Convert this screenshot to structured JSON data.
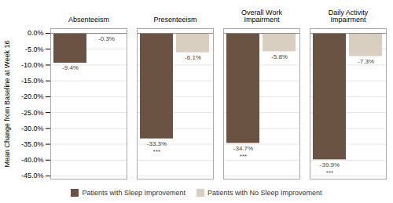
{
  "chart_data": {
    "type": "bar",
    "categories": [
      "Absenteeism",
      "Presenteeism",
      "Overall Work\nImpairment",
      "Daily Activity\nImpairment"
    ],
    "series": [
      {
        "name": "Patients with Sleep Improvement",
        "color": "#6b5344",
        "values": [
          -9.4,
          -33.3,
          -34.7,
          -39.9
        ],
        "value_labels": [
          "-9.4%",
          "-33.3%",
          "-34.7%",
          "-39.9%"
        ]
      },
      {
        "name": "Patients with No Sleep Improvement",
        "color": "#d9cfc0",
        "values": [
          -0.3,
          -6.1,
          -5.8,
          -7.3
        ],
        "value_labels": [
          "-0.3%",
          "-6.1%",
          "-5.8%",
          "-7.3%"
        ]
      }
    ],
    "y_label": "Mean Change from Baseline at Week 16",
    "ylim": [
      -46,
      1.5
    ],
    "yticks": [
      {
        "value": 0.0,
        "label": "0.0%"
      },
      {
        "value": -5.0,
        "label": "-5.0%"
      },
      {
        "value": -10.0,
        "label": "-10.0%"
      },
      {
        "value": -15.0,
        "label": "-15.0%"
      },
      {
        "value": -20.0,
        "label": "-20.0%"
      },
      {
        "value": -25.0,
        "label": "-25.0%"
      },
      {
        "value": -30.0,
        "label": "-30.0%"
      },
      {
        "value": -35.0,
        "label": "-35.0%"
      },
      {
        "value": -40.0,
        "label": "-40.0%"
      },
      {
        "value": -45.0,
        "label": "-45.0%"
      }
    ],
    "annotations": [
      {
        "text": "***",
        "category": "Presenteeism",
        "series": "Patients with Sleep Improvement"
      },
      {
        "text": "***",
        "category": "Overall Work\nImpairment",
        "series": "Patients with Sleep Improvement"
      },
      {
        "text": "***",
        "category": "Daily Activity\nImpairment",
        "series": "Patients with Sleep Improvement"
      }
    ],
    "grid": true,
    "data_labels": true,
    "legend": "bottom"
  }
}
